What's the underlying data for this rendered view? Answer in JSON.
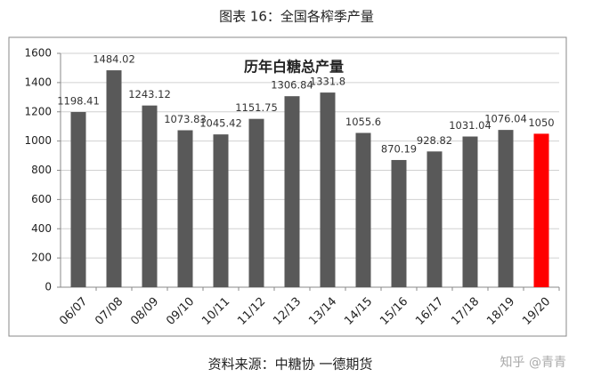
{
  "caption": "图表 16：全国各榨季产量",
  "source": "资料来源：中糖协  一德期货",
  "watermark": "知乎 @青青",
  "chart_data": {
    "type": "bar",
    "title": "历年白糖总产量",
    "categories": [
      "06/07",
      "07/08",
      "08/09",
      "09/10",
      "10/11",
      "11/12",
      "12/13",
      "13/14",
      "14/15",
      "15/16",
      "16/17",
      "17/18",
      "18/19",
      "19/20"
    ],
    "values": [
      1198.41,
      1484.02,
      1243.12,
      1073.83,
      1045.42,
      1151.75,
      1306.84,
      1331.8,
      1055.6,
      870.19,
      928.82,
      1031.04,
      1076.04,
      1050
    ],
    "colors": [
      "#595959",
      "#595959",
      "#595959",
      "#595959",
      "#595959",
      "#595959",
      "#595959",
      "#595959",
      "#595959",
      "#595959",
      "#595959",
      "#595959",
      "#595959",
      "#ff0000"
    ],
    "ylim": [
      0,
      1600
    ],
    "yticks": [
      0,
      200,
      400,
      600,
      800,
      1000,
      1200,
      1400,
      1600
    ],
    "grid": true
  }
}
